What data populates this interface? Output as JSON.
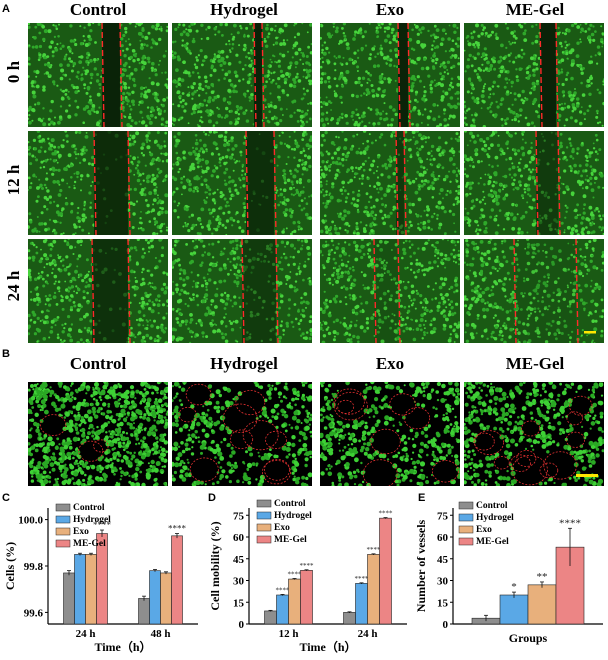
{
  "panel_labels": {
    "A": "A",
    "B": "B",
    "C": "C",
    "D": "D",
    "E": "E"
  },
  "groups": [
    "Control",
    "Hydrogel",
    "Exo",
    "ME-Gel"
  ],
  "rows": [
    "0 h",
    "12 h",
    "24 h"
  ],
  "colors": {
    "Control": "#8e8e8e",
    "Hydrogel": "#5aa8e6",
    "Exo": "#e8b07c",
    "ME-Gel": "#ec8585",
    "cells": "#3ec63a",
    "wound_line": "#ff2a2a",
    "scale_bar": "#ffe600"
  },
  "chart_data": [
    {
      "panel": "C",
      "type": "bar",
      "categories": [
        "24 h",
        "48 h"
      ],
      "series": [
        {
          "name": "Control",
          "values": [
            99.77,
            99.66
          ],
          "errors": [
            0.01,
            0.01
          ]
        },
        {
          "name": "Hydrogel",
          "values": [
            99.85,
            99.78
          ],
          "errors": [
            0.005,
            0.005
          ]
        },
        {
          "name": "Exo",
          "values": [
            99.85,
            99.77
          ],
          "errors": [
            0.005,
            0.005
          ]
        },
        {
          "name": "ME-Gel",
          "values": [
            99.94,
            99.93
          ],
          "errors": [
            0.015,
            0.01
          ]
        }
      ],
      "significance": [
        [
          "",
          "",
          "",
          "****"
        ],
        [
          "",
          "",
          "",
          "****"
        ]
      ],
      "xlabel": "Time（h）",
      "ylabel": "Cells (%)",
      "ylim": [
        99.55,
        100.05
      ],
      "yticks": [
        "99.6",
        "99.8",
        "100.0"
      ],
      "ytick_values": [
        99.6,
        99.8,
        100.0
      ],
      "legend": "top-left"
    },
    {
      "panel": "D",
      "type": "bar",
      "categories": [
        "12 h",
        "24 h"
      ],
      "series": [
        {
          "name": "Control",
          "values": [
            9,
            8
          ],
          "errors": [
            0.4,
            0.4
          ]
        },
        {
          "name": "Hydrogel",
          "values": [
            20,
            28
          ],
          "errors": [
            0.4,
            0.4
          ]
        },
        {
          "name": "Exo",
          "values": [
            31,
            48
          ],
          "errors": [
            0.4,
            0.4
          ]
        },
        {
          "name": "ME-Gel",
          "values": [
            37,
            73
          ],
          "errors": [
            0.4,
            0.4
          ]
        }
      ],
      "significance": [
        [
          "",
          "****",
          "****",
          "****"
        ],
        [
          "",
          "****",
          "****",
          "****"
        ]
      ],
      "xlabel": "Time（h）",
      "ylabel": "Cell mobility (%)",
      "ylim": [
        0,
        80
      ],
      "yticks": [
        "0",
        "15",
        "30",
        "45",
        "60",
        "75"
      ],
      "ytick_values": [
        0,
        15,
        30,
        45,
        60,
        75
      ],
      "legend": "top-left"
    },
    {
      "panel": "E",
      "type": "bar",
      "categories": [
        "Groups"
      ],
      "series": [
        {
          "name": "Control",
          "values": [
            4
          ],
          "errors": [
            2
          ]
        },
        {
          "name": "Hydrogel",
          "values": [
            20
          ],
          "errors": [
            2
          ]
        },
        {
          "name": "Exo",
          "values": [
            27
          ],
          "errors": [
            2
          ]
        },
        {
          "name": "ME-Gel",
          "values": [
            53
          ],
          "errors": [
            13
          ]
        }
      ],
      "significance": [
        [
          "",
          "*",
          "**",
          "****"
        ]
      ],
      "xlabel": "Groups",
      "ylabel": "Number of vessels",
      "ylim": [
        0,
        80
      ],
      "yticks": [
        "0",
        "15",
        "30",
        "45",
        "60",
        "75"
      ],
      "ytick_values": [
        0,
        15,
        30,
        45,
        60,
        75
      ],
      "legend": "top-left"
    }
  ]
}
